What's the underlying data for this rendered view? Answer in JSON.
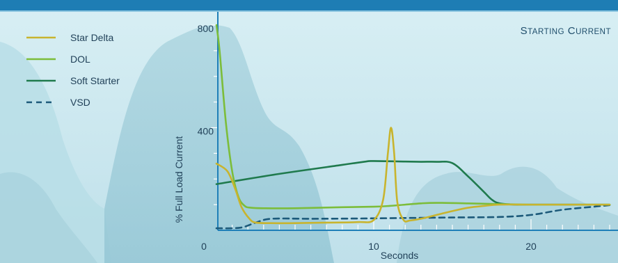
{
  "chart_data": {
    "type": "line",
    "title": "Starting Current",
    "xlabel": "Seconds",
    "ylabel": "% Full Load Current",
    "xlim": [
      0,
      25
    ],
    "ylim": [
      0,
      800
    ],
    "x_ticks": [
      0,
      10,
      20
    ],
    "x_tick_labels": [
      "0",
      "10",
      "20"
    ],
    "y_ticks": [
      400,
      800
    ],
    "y_tick_labels": [
      "400",
      "800"
    ],
    "legend_position": "top-left",
    "grid": false,
    "series": [
      {
        "name": "Star Delta",
        "color": "#c8b42e",
        "style": "solid",
        "x": [
          0,
          0.7,
          1.2,
          1.6,
          2.1,
          2.5,
          3.5,
          5,
          7,
          9,
          10,
          10.6,
          10.9,
          11.1,
          11.3,
          11.5,
          11.9,
          12.3,
          13,
          14,
          15,
          16,
          17,
          18,
          20,
          22,
          24,
          25
        ],
        "y": [
          260,
          230,
          160,
          90,
          45,
          30,
          28,
          28,
          30,
          32,
          40,
          120,
          300,
          400,
          300,
          110,
          40,
          38,
          45,
          60,
          75,
          88,
          95,
          100,
          100,
          100,
          100,
          100
        ]
      },
      {
        "name": "DOL",
        "color": "#7cbd3a",
        "style": "solid",
        "x": [
          0,
          0.2,
          0.6,
          1.0,
          1.4,
          1.8,
          2.2,
          3,
          5,
          8,
          10,
          11,
          12,
          13,
          14,
          16,
          18,
          20,
          22,
          25
        ],
        "y": [
          800,
          700,
          420,
          230,
          130,
          95,
          88,
          86,
          86,
          90,
          92,
          95,
          100,
          105,
          107,
          105,
          102,
          100,
          100,
          100
        ]
      },
      {
        "name": "Soft Starter",
        "color": "#1f7a4d",
        "style": "solid",
        "x": [
          0,
          4,
          8,
          9.5,
          10,
          12,
          13,
          14,
          15,
          16,
          17,
          17.5,
          18,
          19,
          20,
          25
        ],
        "y": [
          180,
          220,
          255,
          268,
          270,
          268,
          267,
          267,
          262,
          210,
          150,
          120,
          105,
          100,
          100,
          100
        ]
      },
      {
        "name": "VSD",
        "color": "#1c5a7a",
        "style": "dashed",
        "x": [
          0,
          1.5,
          2.5,
          3.5,
          6,
          9,
          12,
          15,
          18,
          20,
          22,
          24,
          25
        ],
        "y": [
          8,
          10,
          30,
          45,
          45,
          46,
          48,
          50,
          52,
          60,
          80,
          92,
          98
        ]
      }
    ]
  }
}
